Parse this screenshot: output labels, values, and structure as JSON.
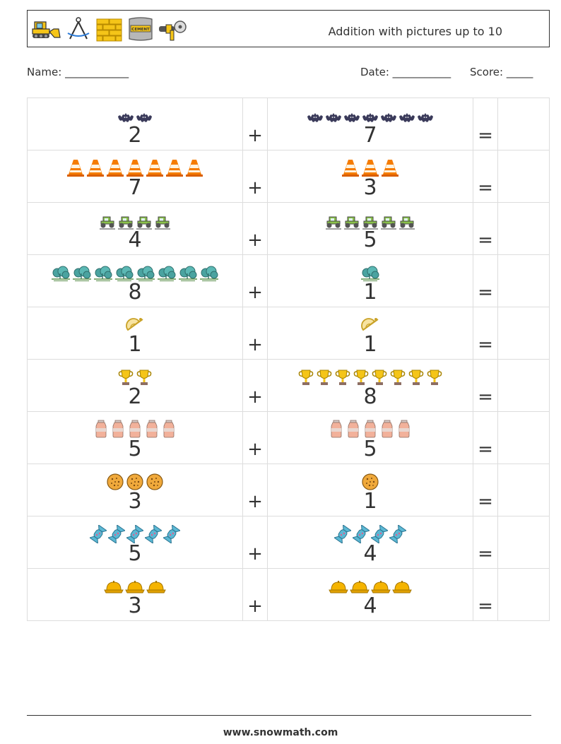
{
  "header": {
    "title": "Addition with pictures up to 10",
    "icons": [
      "bulldozer-icon",
      "compass-icon",
      "brick-wall-icon",
      "cement-bag-icon",
      "angle-grinder-icon"
    ],
    "cement_label": "CEMENT"
  },
  "info": {
    "name_label": "Name: ____________",
    "date_label": "Date: ___________",
    "score_label": "Score: _____"
  },
  "operators": {
    "plus": "+",
    "equals": "="
  },
  "problems": [
    {
      "icon": "bat-icon",
      "a": 2,
      "b": 7,
      "a_text": "2",
      "b_text": "7"
    },
    {
      "icon": "traffic-cone-icon",
      "a": 7,
      "b": 3,
      "a_text": "7",
      "b_text": "3"
    },
    {
      "icon": "tractor-icon",
      "a": 4,
      "b": 5,
      "a_text": "4",
      "b_text": "5"
    },
    {
      "icon": "bush-icon",
      "a": 8,
      "b": 1,
      "a_text": "8",
      "b_text": "1"
    },
    {
      "icon": "protractor-icon",
      "a": 1,
      "b": 1,
      "a_text": "1",
      "b_text": "1"
    },
    {
      "icon": "trophy-icon",
      "a": 2,
      "b": 8,
      "a_text": "2",
      "b_text": "8"
    },
    {
      "icon": "milk-jug-icon",
      "a": 5,
      "b": 5,
      "a_text": "5",
      "b_text": "5"
    },
    {
      "icon": "cookie-icon",
      "a": 3,
      "b": 1,
      "a_text": "3",
      "b_text": "1"
    },
    {
      "icon": "candy-icon",
      "a": 5,
      "b": 4,
      "a_text": "5",
      "b_text": "4"
    },
    {
      "icon": "helmet-icon",
      "a": 3,
      "b": 4,
      "a_text": "3",
      "b_text": "4"
    }
  ],
  "footer": {
    "url": "www.snowmath.com"
  }
}
